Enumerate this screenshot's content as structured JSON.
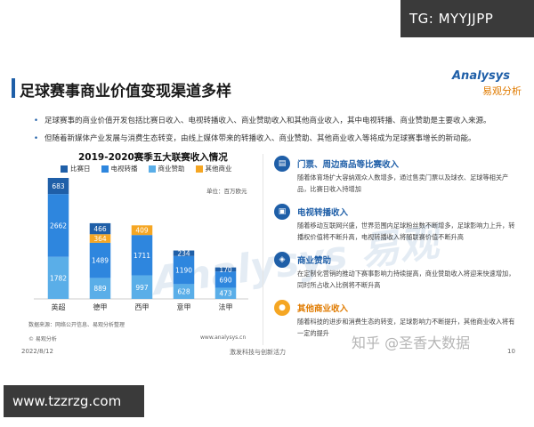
{
  "watermarks": {
    "top_right": "TG: MYYJJPP",
    "bottom_left": "www.tzzrzg.com",
    "zhihu": "知乎 @圣香大数据",
    "center": "Analysys 易观"
  },
  "header": {
    "title": "足球赛事商业价值变现渠道多样",
    "logo_main": "Analysys",
    "logo_sub": "易观分析"
  },
  "bullets": [
    "足球赛事的商业价值开发包括比赛日收入、电视转播收入、商业赞助收入和其他商业收入，其中电视转播、商业赞助是主要收入来源。",
    "但随着新媒体产业发展与消费生态转变，由线上媒体带来的转播收入、商业赞助、其他商业收入等将成为足球赛事增长的新动能。"
  ],
  "chart_data": {
    "type": "bar",
    "stacked": true,
    "title": "2019-2020赛季五大联赛收入情况",
    "unit": "单位：百万欧元",
    "categories": [
      "英超",
      "德甲",
      "西甲",
      "意甲",
      "法甲"
    ],
    "series": [
      {
        "name": "比赛日",
        "color": "#1f5fa8",
        "values": [
          683,
          466,
          0,
          234,
          170
        ]
      },
      {
        "name": "电视转播",
        "color": "#2e86de",
        "values": [
          2662,
          1489,
          1711,
          1190,
          690
        ]
      },
      {
        "name": "商业赞助",
        "color": "#5aaee8",
        "values": [
          1782,
          889,
          997,
          628,
          473
        ]
      },
      {
        "name": "其他商业",
        "color": "#f5a623",
        "values": [
          0,
          364,
          409,
          0,
          0
        ]
      }
    ],
    "data_labels": [
      [
        "683",
        "2662",
        "1782"
      ],
      [
        "466",
        "364",
        "1489",
        "889"
      ],
      [
        "409",
        "1711",
        "997"
      ],
      [
        "234",
        "1190",
        "628"
      ],
      [
        "170",
        "690",
        "473"
      ]
    ],
    "legend_placement": "top",
    "grid": false
  },
  "chart_source": "数据来源：网络公开信息、易观分析整理",
  "chart_copyright": "© 易观分析",
  "chart_site": "www.analysys.cn",
  "channels": [
    {
      "title": "门票、周边商品等比赛收入",
      "desc": "随着体育场扩大容纳观众人数增多，通过售卖门票以及球衣、足球等相关产品，比赛日收入持增加",
      "icon": "ticket-icon",
      "color": "#1f5fa8"
    },
    {
      "title": "电视转播收入",
      "desc": "随着移动互联网兴盛，世界范围内足球粉丝数不断增多，足球影响力上升，转播权价值将不断升高，电视转播收入将随联赛价值不断升高",
      "icon": "tv-icon",
      "color": "#1f5fa8"
    },
    {
      "title": "商业赞助",
      "desc": "在定制化营销的推动下赛事影响力持续提高，商业赞助收入将迎来快速增加，同时所占收入比例将不断升高",
      "icon": "handshake-icon",
      "color": "#1f5fa8"
    },
    {
      "title": "其他商业收入",
      "desc": "随着科技的进步和消费生态的转变，足球影响力不断提升，其他商业收入将有一定的提升",
      "icon": "coins-icon",
      "color": "#f5a623"
    }
  ],
  "footer": {
    "date": "2022/8/12",
    "center": "激发科技与创新活力",
    "page": "10"
  }
}
